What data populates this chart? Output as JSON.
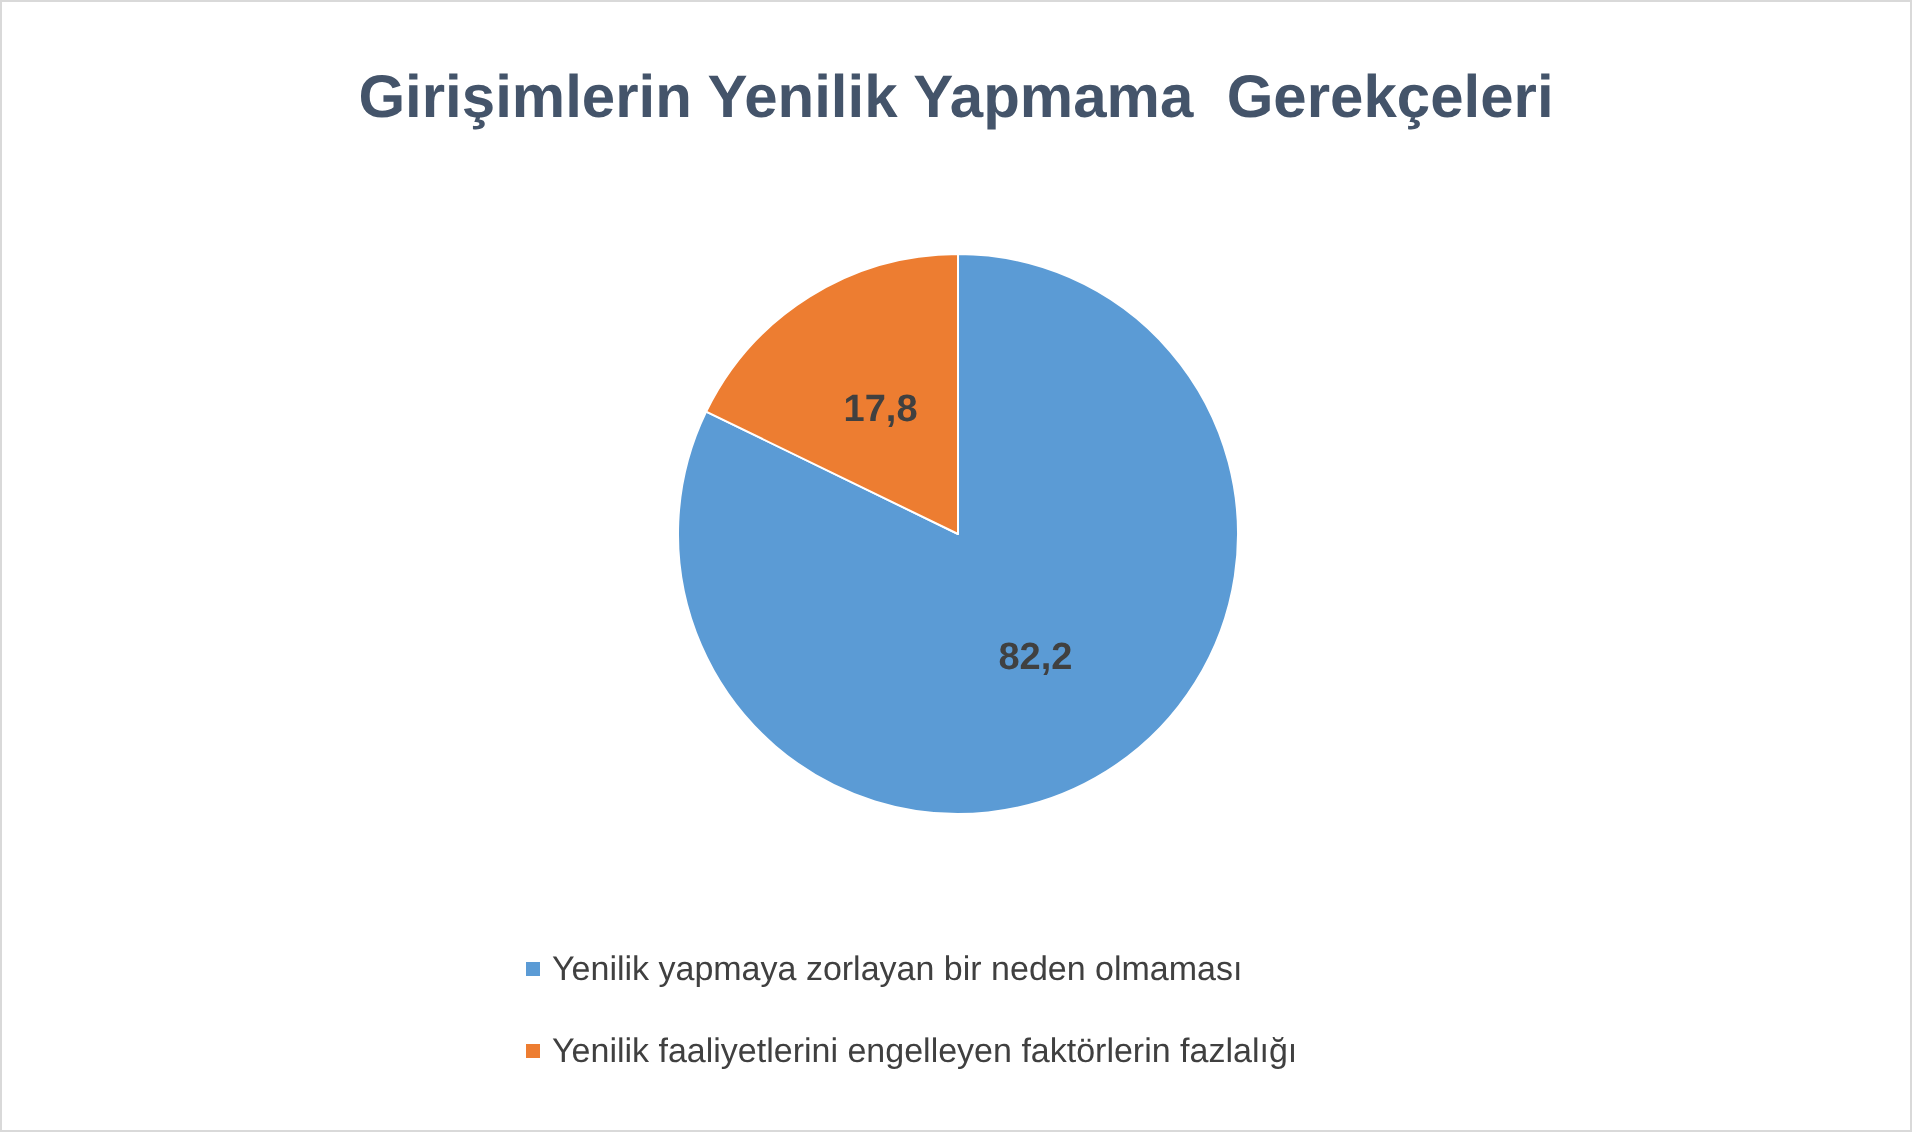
{
  "chart_data": {
    "type": "pie",
    "title": "Girişimlerin Yenilik Yapmama  Gerekçeleri",
    "categories": [
      "Yenilik yapmaya zorlayan bir neden olmaması",
      "Yenilik faaliyetlerini engelleyen faktörlerin fazlalığı"
    ],
    "values": [
      82.2,
      17.8
    ],
    "colors": [
      "#5b9bd5",
      "#ed7d31"
    ],
    "value_labels": [
      "82,2",
      "17,8"
    ],
    "legend": "bottom"
  }
}
